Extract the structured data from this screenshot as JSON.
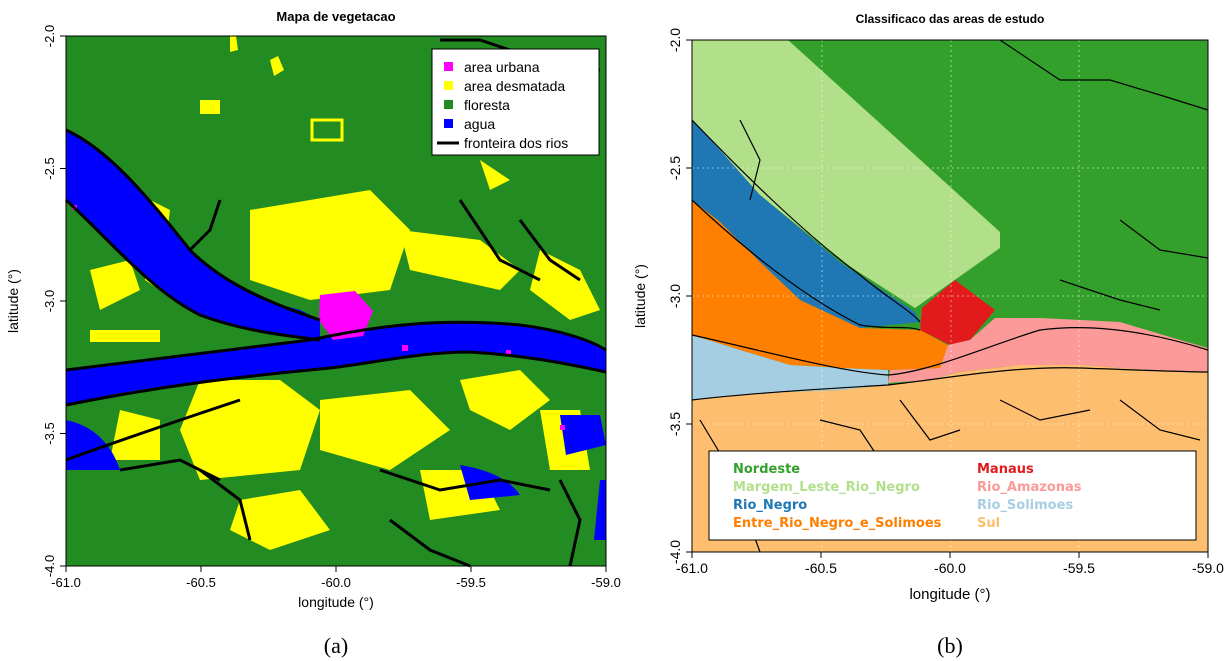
{
  "panel_a": {
    "title": "Mapa de vegetacao",
    "xlabel": "longitude (°)",
    "ylabel": "latitude (°)",
    "xticks": [
      "-61.0",
      "-60.5",
      "-60.0",
      "-59.5",
      "-59.0"
    ],
    "yticks": [
      "-2.0",
      "-2.5",
      "-3.0",
      "-3.5",
      "-4.0"
    ],
    "legend": [
      {
        "label": "area urbana",
        "color": "#ff00ff"
      },
      {
        "label": "area desmatada",
        "color": "#ffff00"
      },
      {
        "label": "floresta",
        "color": "#228b22"
      },
      {
        "label": "agua",
        "color": "#0000ff"
      },
      {
        "label": "fronteira dos rios",
        "color": "#000000"
      }
    ],
    "caption": "(a)"
  },
  "panel_b": {
    "title": "Classificaco das areas de estudo",
    "xlabel": "longitude (°)",
    "ylabel": "latitude (°)",
    "xticks": [
      "-61.0",
      "-60.5",
      "-60.0",
      "-59.5",
      "-59.0"
    ],
    "yticks": [
      "-2.0",
      "-2.5",
      "-3.0",
      "-3.5",
      "-4.0"
    ],
    "legend": [
      {
        "label": "Nordeste",
        "color": "#33a02c"
      },
      {
        "label": "Margem_Leste_Rio_Negro",
        "color": "#b2df8a"
      },
      {
        "label": "Rio_Negro",
        "color": "#1f78b4"
      },
      {
        "label": "Entre_Rio_Negro_e_Solimoes",
        "color": "#ff7f00"
      },
      {
        "label": "Manaus",
        "color": "#e31a1c"
      },
      {
        "label": "Rio_Amazonas",
        "color": "#fb9a99"
      },
      {
        "label": "Rio_Solimoes",
        "color": "#a6cee3"
      },
      {
        "label": "Sul",
        "color": "#fdbf6f"
      }
    ],
    "caption": "(b)"
  }
}
